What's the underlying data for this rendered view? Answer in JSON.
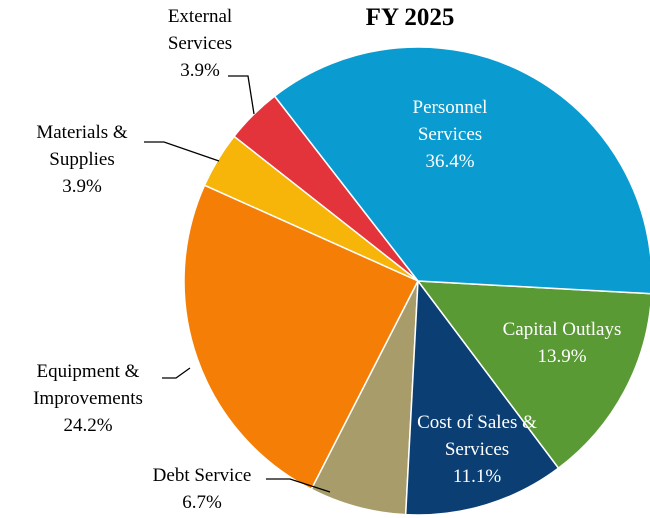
{
  "chart_data": {
    "type": "pie",
    "title": "FY 2025",
    "categories": [
      "Personnel Services",
      "Capital Outlays",
      "Cost of Sales & Services",
      "Debt Service",
      "Equipment & Improvements",
      "Materials & Supplies",
      "External Services"
    ],
    "values": [
      36.4,
      13.9,
      11.1,
      6.7,
      24.2,
      3.9,
      3.9
    ],
    "value_labels": [
      "36.4%",
      "13.9%",
      "11.1%",
      "6.7%",
      "24.2%",
      "3.9%",
      "3.9%"
    ],
    "colors": [
      "#0a9bd0",
      "#5a9a35",
      "#0b3f73",
      "#a89d6a",
      "#f57f06",
      "#f7b50a",
      "#e3343c"
    ]
  }
}
